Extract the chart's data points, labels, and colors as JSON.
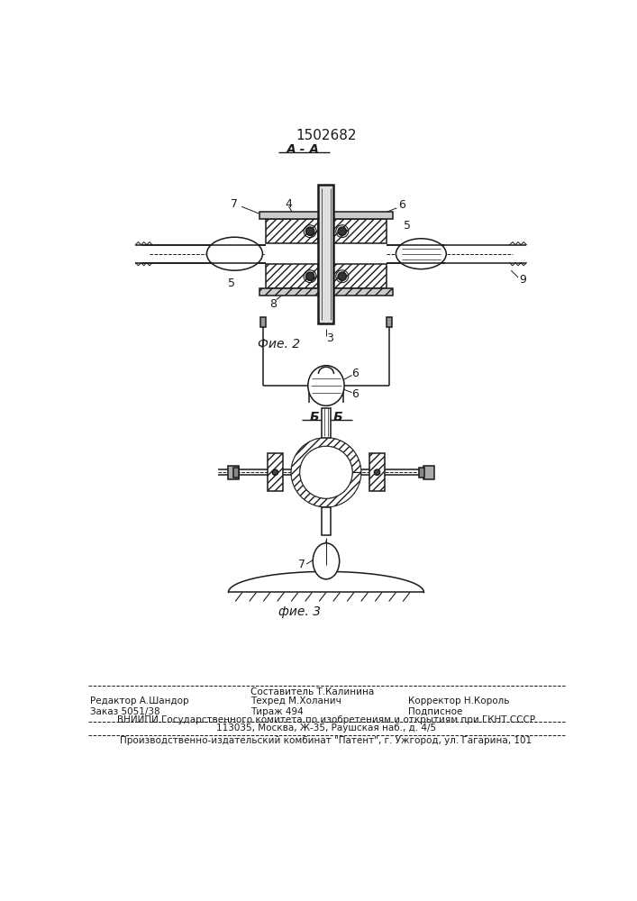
{
  "title": "1502682",
  "fig2_label": "А - А",
  "fig2_caption": "Фие. 2",
  "fig3_label": "Б - Б",
  "fig3_caption": "фие. 3",
  "footer_col1_row1": "Редактор А.Шандор",
  "footer_col2_row0": "Составитель Т.Калинина",
  "footer_col2_row1": "Техред М.Холанич",
  "footer_col3_row1": "Корректор Н.Король",
  "footer_col1_row2": "Заказ 5051/38",
  "footer_col2_row2": "Тираж 494",
  "footer_col3_row2": "Подписное",
  "footer_vniipи": "ВНИИПИ Государственного комитета по изобретениям и открытиям при ГКНТ СССР",
  "footer_addr": "113035, Москва, Ж-35, Раушская наб., д. 4/5",
  "footer_patent": "Производственно-издательский комбинат \"Патент\", г. Ужгород, ул. Гагарина, 101",
  "lc": "#1a1a1a",
  "fs_title": 11,
  "fs_label": 9,
  "fs_footer": 7.5,
  "fs_caption": 10
}
